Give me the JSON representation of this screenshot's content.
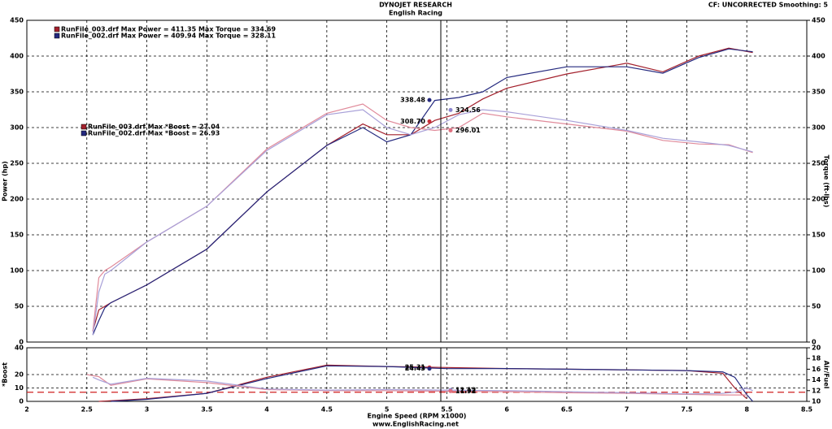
{
  "header": {
    "title": "DYNOJET RESEARCH",
    "subtitle": "English Racing",
    "settings": "CF: UNCORRECTED  Smoothing: 5",
    "footer": "www.EnglishRacing.net"
  },
  "chart_data": [
    {
      "type": "line",
      "ylabel": "Power (hp)",
      "y2label": "Torque (ft-lbs)",
      "xlim": [
        2.0,
        8.5
      ],
      "xticks": [
        2.0,
        2.5,
        3.0,
        3.5,
        4.0,
        4.5,
        5.0,
        5.5,
        6.0,
        6.5,
        7.0,
        7.5,
        8.0,
        8.5
      ],
      "ylim": [
        0,
        450
      ],
      "yticks": [
        0,
        50,
        100,
        150,
        200,
        250,
        300,
        350,
        400,
        450
      ],
      "y2lim": [
        0,
        450
      ],
      "y2ticks": [
        0,
        50,
        100,
        150,
        200,
        250,
        300,
        350,
        400,
        450
      ],
      "legend": [
        {
          "text": "RunFile_003.drf Max Power = 411.35    Max Torque = 334.69",
          "color": "#a3202c"
        },
        {
          "text": "RunFile_002.drf Max Power = 409.94    Max Torque = 328.11",
          "color": "#23287e"
        }
      ],
      "x": [
        2.55,
        2.6,
        2.65,
        2.7,
        3.0,
        3.5,
        4.0,
        4.5,
        4.8,
        5.0,
        5.2,
        5.4,
        5.6,
        5.8,
        6.0,
        6.5,
        7.0,
        7.3,
        7.6,
        7.85,
        8.05
      ],
      "series": [
        {
          "color": "#a3202c",
          "values": [
            15,
            45,
            50,
            55,
            80,
            130,
            210,
            275,
            305,
            290,
            290,
            310,
            320,
            340,
            355,
            375,
            390,
            378,
            400,
            411,
            405
          ]
        },
        {
          "color": "#23287e",
          "values": [
            10,
            30,
            48,
            55,
            80,
            130,
            210,
            275,
            300,
            280,
            290,
            338,
            342,
            350,
            370,
            385,
            385,
            376,
            398,
            410,
            406
          ]
        },
        {
          "color": "#e08a9a",
          "axis": "y2",
          "values": [
            15,
            90,
            100,
            105,
            140,
            190,
            270,
            320,
            333,
            310,
            300,
            296,
            300,
            320,
            315,
            305,
            295,
            282,
            277,
            276,
            265
          ]
        },
        {
          "color": "#a8a0d8",
          "axis": "y2",
          "values": [
            10,
            70,
            95,
            100,
            140,
            190,
            268,
            318,
            325,
            300,
            290,
            300,
            318,
            325,
            322,
            310,
            296,
            285,
            280,
            275,
            266
          ]
        }
      ],
      "cursor": {
        "x": 5.45,
        "points": [
          {
            "value": 338.48,
            "color": "#23287e"
          },
          {
            "value": 324.56,
            "color": "#8c86d0",
            "axis": "y2"
          },
          {
            "value": 308.7,
            "label": "308.70",
            "color": "#c8303a"
          },
          {
            "value": 296.01,
            "color": "#e07080",
            "axis": "y2"
          }
        ]
      }
    },
    {
      "type": "line",
      "ylabel": "*Boost",
      "y2label": "Air/Fuel",
      "xlabel": "Engine Speed (RPM x1000)",
      "legend": [
        {
          "text": "RunFile_003.drf Max *Boost = 27.04",
          "color": "#a3202c"
        },
        {
          "text": "RunFile_002.drf Max *Boost = 26.93",
          "color": "#23287e"
        }
      ],
      "xlim": [
        2.0,
        8.5
      ],
      "xticks": [
        2.0,
        2.5,
        3.0,
        3.5,
        4.0,
        4.5,
        5.0,
        5.5,
        6.0,
        6.5,
        7.0,
        7.5,
        8.0,
        8.5
      ],
      "ylim": [
        0,
        40
      ],
      "yticks": [
        0,
        10,
        20,
        40
      ],
      "y2lim": [
        10,
        20
      ],
      "y2ticks": [
        10,
        12,
        14,
        16,
        18,
        20
      ],
      "x": [
        2.5,
        2.55,
        2.6,
        2.7,
        3.0,
        3.5,
        4.0,
        4.5,
        5.0,
        5.5,
        6.0,
        6.5,
        7.0,
        7.5,
        7.8,
        7.9,
        8.0,
        8.05
      ],
      "series": [
        {
          "color": "#a3202c",
          "values": [
            null,
            null,
            0,
            0.5,
            2,
            6,
            18,
            27,
            26,
            25.3,
            24.5,
            24,
            23.5,
            23,
            21,
            10,
            2,
            null
          ]
        },
        {
          "color": "#23287e",
          "values": [
            null,
            null,
            null,
            0,
            1.5,
            6,
            17,
            26.5,
            26,
            24.4,
            24.5,
            24,
            23.5,
            23,
            22,
            18,
            5,
            0
          ]
        },
        {
          "color": "#e08a9a",
          "axis": "y2",
          "values": [
            15,
            14.8,
            14.6,
            13,
            14.2,
            13.5,
            12.2,
            12,
            12,
            11.9,
            11.8,
            11.6,
            11.5,
            11.3,
            11.2,
            11.2,
            11.2,
            null
          ]
        },
        {
          "color": "#a8a0d8",
          "axis": "y2",
          "values": [
            null,
            14.5,
            14,
            13.2,
            14.3,
            13.8,
            12.3,
            12.1,
            12.2,
            12.1,
            12,
            11.8,
            11.6,
            11.4,
            11.5,
            11.7,
            12.5,
            12
          ]
        }
      ],
      "reference_line": {
        "value": 11.7,
        "axis": "y2",
        "color": "#d02020"
      },
      "cursor": {
        "x": 5.45,
        "points": [
          {
            "value": 25.31,
            "color": "#c8303a"
          },
          {
            "value": 24.43,
            "color": "#23287e"
          },
          {
            "value": 12.12,
            "color": "#8c86d0",
            "axis": "y2"
          },
          {
            "value": 11.92,
            "color": "#e07080",
            "axis": "y2"
          }
        ]
      }
    }
  ]
}
